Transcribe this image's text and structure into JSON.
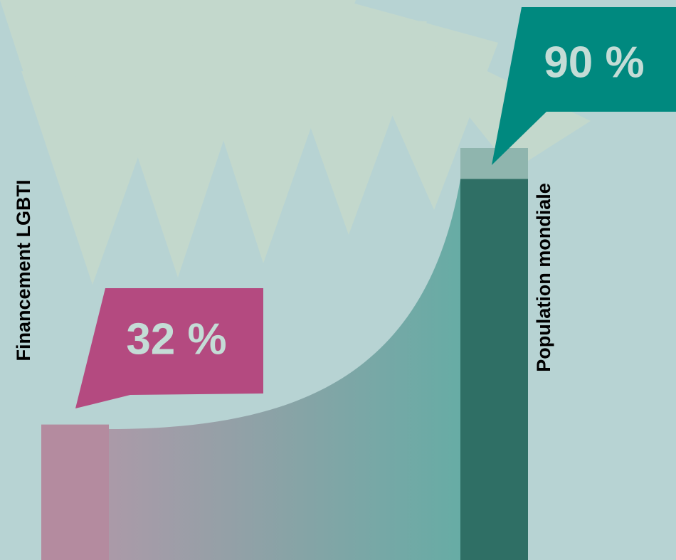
{
  "chart_data": {
    "type": "bar",
    "categories": [
      "Financement LGBTI",
      "Population mondiale"
    ],
    "values": [
      32,
      90
    ],
    "value_labels": [
      "32 %",
      "90 %"
    ],
    "colors": [
      "#b48b9f",
      "#2f6f65"
    ],
    "callout_colors": [
      "#b44a80",
      "#00897f"
    ],
    "ylim": [
      0,
      100
    ]
  }
}
